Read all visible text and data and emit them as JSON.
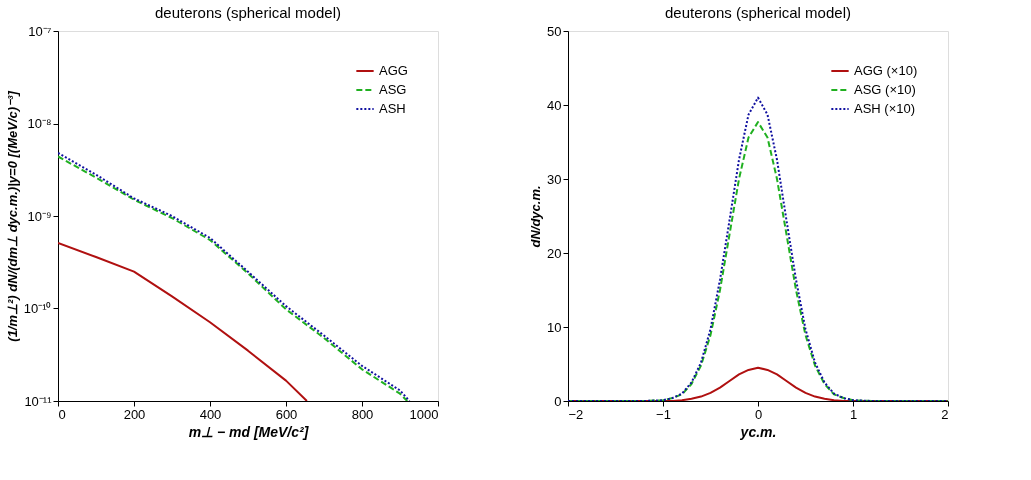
{
  "chart_data": [
    {
      "type": "line",
      "title": "deuterons (spherical model)",
      "xlabel": "m⊥ − md [MeV/c²]",
      "ylabel": "(1/m⊥²) dN/(dm⊥ dyc.m.)|y=0 [(MeV/c)⁻³]",
      "log": "y",
      "legend": "top right",
      "xlim": [
        0,
        1000
      ],
      "xticks": [
        0,
        200,
        400,
        600,
        800,
        1000
      ],
      "ylim": [
        1e-11,
        1e-07
      ],
      "yticks": [
        {
          "value": 1e-11,
          "label": "10⁻¹¹"
        },
        {
          "value": 1e-10,
          "label": "10⁻¹⁰"
        },
        {
          "value": 1e-09,
          "label": "10⁻⁹"
        },
        {
          "value": 1e-08,
          "label": "10⁻⁸"
        },
        {
          "value": 1e-07,
          "label": "10⁻⁷"
        }
      ],
      "series": [
        {
          "name": "AGG",
          "color": "#b01010",
          "line_style": "solid",
          "x": [
            0,
            100,
            200,
            300,
            400,
            500,
            600,
            655
          ],
          "values": [
            5.1e-10,
            3.6e-10,
            2.5e-10,
            1.35e-10,
            7.1e-11,
            3.5e-11,
            1.66e-11,
            1e-11
          ]
        },
        {
          "name": "ASG",
          "color": "#20b020",
          "line_style": "dashed",
          "x": [
            0,
            100,
            200,
            300,
            400,
            500,
            600,
            700,
            800,
            900,
            919
          ],
          "values": [
            4.4e-09,
            2.6e-09,
            1.5e-09,
            9.5e-10,
            5.5e-10,
            2.4e-10,
            9.8e-11,
            4.8e-11,
            2.2e-11,
            1.2e-11,
            1e-11
          ]
        },
        {
          "name": "ASH",
          "color": "#1010a0",
          "line_style": "dotted",
          "x": [
            0,
            100,
            200,
            300,
            400,
            500,
            600,
            700,
            800,
            900,
            925
          ],
          "values": [
            4.8e-09,
            2.8e-09,
            1.55e-09,
            1e-09,
            5.8e-10,
            2.5e-10,
            1.06e-10,
            5.1e-11,
            2.4e-11,
            1.3e-11,
            1e-11
          ]
        }
      ]
    },
    {
      "type": "line",
      "title": "deuterons (spherical model)",
      "xlabel": "yc.m.",
      "ylabel": "dN/dyc.m.",
      "legend": "top right",
      "xlim": [
        -2,
        2
      ],
      "xticks": [
        -2,
        -1,
        0,
        1,
        2
      ],
      "ylim": [
        0,
        50
      ],
      "yticks": [
        0,
        10,
        20,
        30,
        40,
        50
      ],
      "x": [
        -2,
        -1.5,
        -1.2,
        -1,
        -0.9,
        -0.8,
        -0.7,
        -0.6,
        -0.5,
        -0.4,
        -0.3,
        -0.2,
        -0.1,
        0,
        0.1,
        0.2,
        0.3,
        0.4,
        0.5,
        0.6,
        0.7,
        0.8,
        0.9,
        1,
        1.2,
        1.5,
        2
      ],
      "series": [
        {
          "name": "AGG (×10)",
          "color": "#b01010",
          "line_style": "solid",
          "values": [
            0,
            0,
            0,
            0,
            0,
            0.1,
            0.3,
            0.6,
            1.1,
            1.8,
            2.7,
            3.6,
            4.2,
            4.5,
            4.2,
            3.6,
            2.7,
            1.8,
            1.1,
            0.6,
            0.3,
            0.1,
            0,
            0,
            0,
            0,
            0
          ]
        },
        {
          "name": "ASG (×10)",
          "color": "#20b020",
          "line_style": "dashed",
          "values": [
            0,
            0,
            0,
            0.1,
            0.4,
            0.9,
            2.3,
            4.8,
            8.9,
            15.0,
            22.5,
            30.0,
            35.6,
            37.7,
            35.6,
            30.0,
            22.5,
            15.0,
            8.9,
            4.8,
            2.3,
            0.9,
            0.4,
            0.1,
            0,
            0,
            0
          ]
        },
        {
          "name": "ASH (×10)",
          "color": "#1010a0",
          "line_style": "dotted",
          "values": [
            0,
            0,
            0,
            0.1,
            0.4,
            1.0,
            2.5,
            5.2,
            9.7,
            16.4,
            24.4,
            32.6,
            38.7,
            41.0,
            38.7,
            32.6,
            24.4,
            16.4,
            9.7,
            5.2,
            2.5,
            1.0,
            0.4,
            0.1,
            0,
            0,
            0
          ]
        }
      ]
    }
  ]
}
